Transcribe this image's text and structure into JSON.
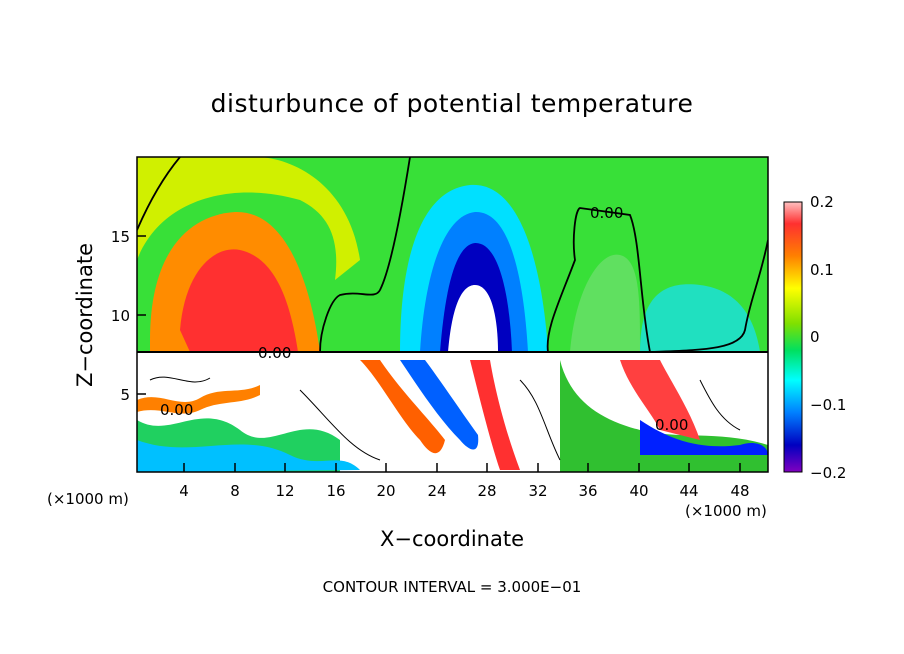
{
  "chart_data": {
    "type": "heatmap",
    "title": "disturbunce of potential temperature",
    "xlabel": "X−coordinate",
    "ylabel": "Z−coordinate",
    "x_unit_left": "(×1000 m)",
    "x_unit_right": "(×1000 m)",
    "x_ticks": [
      "4",
      "8",
      "12",
      "16",
      "20",
      "24",
      "28",
      "32",
      "36",
      "40",
      "44",
      "48"
    ],
    "y_ticks": [
      "5",
      "10",
      "15"
    ],
    "xlim": [
      0,
      50
    ],
    "ylim": [
      0,
      20
    ],
    "colorbar": {
      "ticks": [
        "0.2",
        "0.1",
        "0",
        "−0.1",
        "−0.2"
      ],
      "range": [
        -0.2,
        0.2
      ]
    },
    "contour_label": "0.00",
    "footer": "CONTOUR INTERVAL = 3.000E−01",
    "grid": false
  }
}
